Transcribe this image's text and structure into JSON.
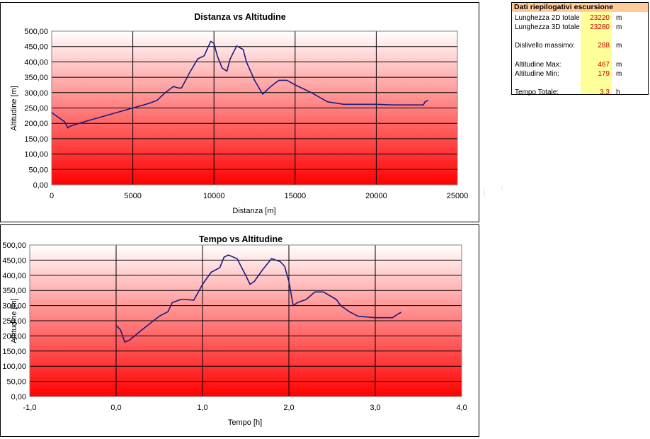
{
  "summary": {
    "title": "Dati riepilogativi escursione",
    "rows": [
      {
        "label": "Lunghezza 2D totale",
        "value": "23220",
        "unit": "m"
      },
      {
        "label": "Lunghezza 3D totale",
        "value": "23280",
        "unit": "m"
      },
      {
        "label": "",
        "value": "",
        "unit": ""
      },
      {
        "label": "Dislivello massimo:",
        "value": "288",
        "unit": "m"
      },
      {
        "label": "",
        "value": "",
        "unit": ""
      },
      {
        "label": "Altitudine Max:",
        "value": "467",
        "unit": "m"
      },
      {
        "label": "Altitudine Min:",
        "value": "179",
        "unit": "m"
      },
      {
        "label": "",
        "value": "",
        "unit": ""
      },
      {
        "label": "Tempo Totale:",
        "value": "3,3",
        "unit": "h"
      }
    ]
  },
  "colors": {
    "line": "#1a1a80",
    "gradient_top": "#ffffff",
    "gradient_bottom": "#ff0000",
    "summary_header": "#ffcc99",
    "summary_values_bg": "#ffff99",
    "summary_value_text": "#cc0000"
  },
  "chart_data": [
    {
      "type": "line",
      "title": "Distanza vs Altitudine",
      "xlabel": "Distanza [m]",
      "ylabel": "Altitudine [m]",
      "xlim": [
        0,
        25000
      ],
      "ylim": [
        0,
        500
      ],
      "xticks": [
        0,
        5000,
        10000,
        15000,
        20000,
        25000
      ],
      "xtick_labels": [
        "0",
        "5000",
        "10000",
        "15000",
        "20000",
        "25000"
      ],
      "yticks": [
        0,
        50,
        100,
        150,
        200,
        250,
        300,
        350,
        400,
        450,
        500
      ],
      "ytick_labels": [
        "0,00",
        "50,00",
        "100,00",
        "150,00",
        "200,00",
        "250,00",
        "300,00",
        "350,00",
        "400,00",
        "450,00",
        "500,00"
      ],
      "grid": true,
      "x": [
        0,
        400,
        800,
        1000,
        1100,
        2000,
        3000,
        4000,
        5000,
        6000,
        6500,
        7000,
        7500,
        7800,
        8000,
        8500,
        9000,
        9400,
        9800,
        10000,
        10200,
        10500,
        10800,
        11000,
        11400,
        11800,
        12000,
        12500,
        13000,
        13500,
        14000,
        14500,
        15000,
        16000,
        17000,
        18000,
        20000,
        21000,
        22000,
        22900,
        23000,
        23200
      ],
      "y": [
        235,
        220,
        205,
        185,
        190,
        205,
        220,
        235,
        250,
        265,
        275,
        300,
        320,
        315,
        315,
        365,
        410,
        420,
        467,
        460,
        420,
        380,
        370,
        410,
        452,
        440,
        400,
        340,
        295,
        320,
        340,
        340,
        325,
        300,
        270,
        262,
        262,
        260,
        260,
        260,
        270,
        275
      ]
    },
    {
      "type": "line",
      "title": "Tempo vs Altitudine",
      "xlabel": "Tempo [h]",
      "ylabel": "Altitudine [m]",
      "xlim": [
        -1.0,
        4.0
      ],
      "ylim": [
        0,
        500
      ],
      "xticks": [
        -1.0,
        0.0,
        1.0,
        2.0,
        3.0,
        4.0
      ],
      "xtick_labels": [
        "-1,0",
        "0,0",
        "1,0",
        "2,0",
        "3,0",
        "4,0"
      ],
      "yticks": [
        0,
        50,
        100,
        150,
        200,
        250,
        300,
        350,
        400,
        450,
        500
      ],
      "ytick_labels": [
        "0,00",
        "50,00",
        "100,00",
        "150,00",
        "200,00",
        "250,00",
        "300,00",
        "350,00",
        "400,00",
        "450,00",
        "500,00"
      ],
      "grid": true,
      "x": [
        0.0,
        0.05,
        0.1,
        0.15,
        0.3,
        0.5,
        0.6,
        0.65,
        0.75,
        0.8,
        0.9,
        1.0,
        1.1,
        1.2,
        1.25,
        1.3,
        1.4,
        1.5,
        1.55,
        1.6,
        1.7,
        1.8,
        1.9,
        1.95,
        2.0,
        2.05,
        2.1,
        2.2,
        2.3,
        2.4,
        2.55,
        2.6,
        2.7,
        2.8,
        3.0,
        3.2,
        3.25,
        3.3
      ],
      "y": [
        235,
        220,
        180,
        185,
        220,
        265,
        280,
        310,
        320,
        320,
        318,
        370,
        410,
        425,
        460,
        467,
        455,
        400,
        370,
        380,
        420,
        455,
        445,
        430,
        380,
        300,
        310,
        320,
        345,
        345,
        320,
        300,
        280,
        265,
        260,
        260,
        270,
        278
      ]
    }
  ]
}
